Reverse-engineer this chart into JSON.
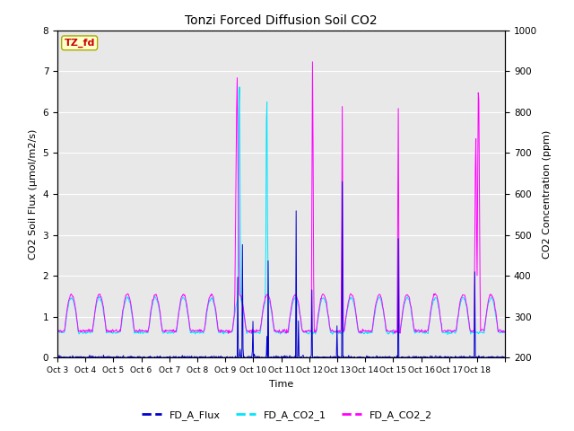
{
  "title": "Tonzi Forced Diffusion Soil CO2",
  "xlabel": "Time",
  "ylabel_left": "CO2 Soil Flux (µmol/m2/s)",
  "ylabel_right": "CO2 Concentration (ppm)",
  "ylim_left": [
    0.0,
    8.0
  ],
  "ylim_right": [
    200,
    1000
  ],
  "xtick_labels": [
    "Oct 3",
    "Oct 4",
    "Oct 5",
    "Oct 6",
    "Oct 7",
    "Oct 8",
    "Oct 9",
    "Oct 10",
    "Oct 11",
    "Oct 12",
    "Oct 13",
    "Oct 14",
    "Oct 15",
    "Oct 16",
    "Oct 17",
    "Oct 18"
  ],
  "legend_labels": [
    "FD_A_Flux",
    "FD_A_CO2_1",
    "FD_A_CO2_2"
  ],
  "legend_colors": [
    "#0000cd",
    "#00e5ff",
    "#ff00ff"
  ],
  "flux_color": "#0000cd",
  "co2_1_color": "#00e5ff",
  "co2_2_color": "#ff00ff",
  "tag_text": "TZ_fd",
  "tag_bg": "#ffffcc",
  "tag_fg": "#cc0000",
  "bg_color": "#e8e8e8",
  "grid_color": "#ffffff",
  "n_days": 16,
  "pts_per_day": 48
}
